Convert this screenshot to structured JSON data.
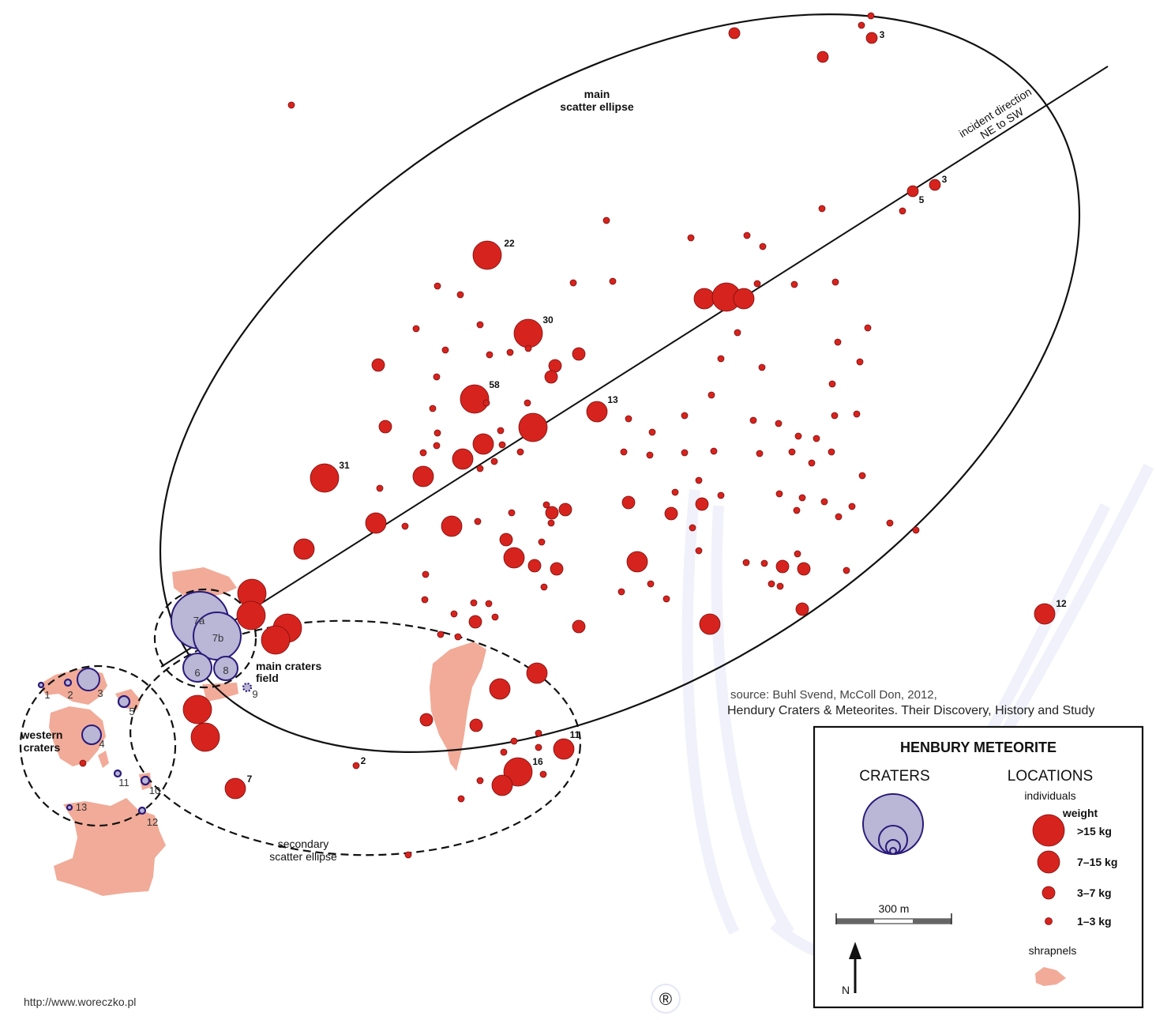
{
  "labels": {
    "main_ellipse": [
      "main",
      "scatter ellipse"
    ],
    "incident": [
      "incident direction",
      "NE to SW"
    ],
    "main_craters": [
      "main craters",
      "field"
    ],
    "western_craters": [
      "western",
      "craters"
    ],
    "secondary_ellipse": [
      "secondary",
      "scatter ellipse"
    ]
  },
  "source": {
    "line1": "source: Buhl Svend, McColl Don, 2012,",
    "line2": "Hendury Craters & Meteorites. Their Discovery, History and Study"
  },
  "url": "http://www.woreczko.pl",
  "watermark_symbol": "®",
  "legend": {
    "title": "HENBURY METEORITE",
    "craters_heading": "CRATERS",
    "locations_heading": "LOCATIONS",
    "individuals": "individuals",
    "weight": "weight",
    "classes": [
      ">15 kg",
      "7–15 kg",
      "3–7 kg",
      "1–3 kg"
    ],
    "scale": "300 m",
    "north": "N",
    "shrapnels": "shrapnels"
  },
  "crater_labels": [
    "7a",
    "7b",
    "6",
    "8",
    "9",
    "1",
    "2",
    "3",
    "4",
    "5",
    "10",
    "11",
    "12",
    "13"
  ],
  "meteorite_labels": [
    "3",
    "3",
    "5",
    "22",
    "30",
    "58",
    "13",
    "31",
    "12",
    "7",
    "2",
    "16",
    "11"
  ],
  "colors": {
    "meteorite": "#d7231d",
    "crater": "#b9b6d6",
    "crater_outline": "#2a1a7a",
    "shrapnel": "#f1ab98"
  }
}
